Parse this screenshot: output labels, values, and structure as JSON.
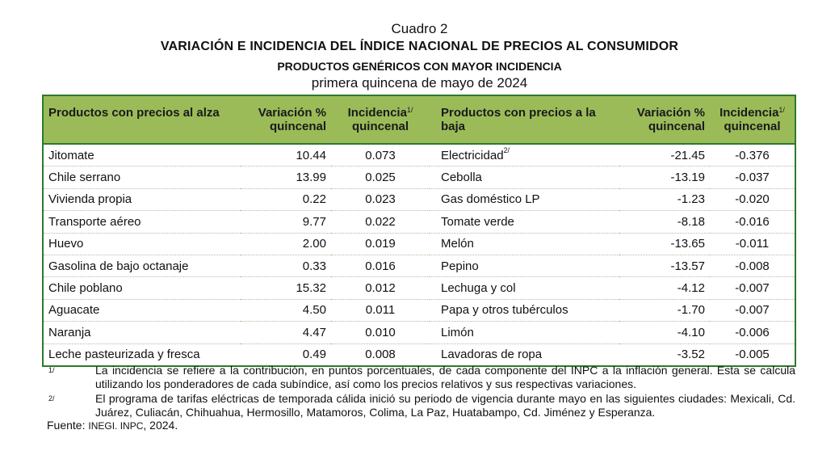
{
  "title": {
    "cuadro": "Cuadro 2",
    "main": "VARIACIÓN E INCIDENCIA DEL ÍNDICE NACIONAL DE PRECIOS AL CONSUMIDOR",
    "sub": "PRODUCTOS GENÉRICOS CON MAYOR INCIDENCIA",
    "period": "primera quincena de mayo de 2024"
  },
  "headers": {
    "up_product": "Productos con precios al alza",
    "variacion": "Variación % quincenal",
    "incidencia": "Incidencia",
    "incidencia_note": "1/",
    "quincenal": "quincenal",
    "down_product": "Productos con precios a la baja"
  },
  "rows": [
    {
      "up": "Jitomate",
      "uv": "10.44",
      "ui": "0.073",
      "down": "Electricidad",
      "dnote": "2/",
      "dv": "-21.45",
      "di": "-0.376"
    },
    {
      "up": "Chile serrano",
      "uv": "13.99",
      "ui": "0.025",
      "down": "Cebolla",
      "dv": "-13.19",
      "di": "-0.037"
    },
    {
      "up": "Vivienda propia",
      "uv": "0.22",
      "ui": "0.023",
      "down": "Gas doméstico LP",
      "dv": "-1.23",
      "di": "-0.020"
    },
    {
      "up": "Transporte aéreo",
      "uv": "9.77",
      "ui": "0.022",
      "down": "Tomate verde",
      "dv": "-8.18",
      "di": "-0.016"
    },
    {
      "up": "Huevo",
      "uv": "2.00",
      "ui": "0.019",
      "down": "Melón",
      "dv": "-13.65",
      "di": "-0.011"
    },
    {
      "up": "Gasolina de bajo octanaje",
      "uv": "0.33",
      "ui": "0.016",
      "down": "Pepino",
      "dv": "-13.57",
      "di": "-0.008"
    },
    {
      "up": "Chile poblano",
      "uv": "15.32",
      "ui": "0.012",
      "down": "Lechuga y col",
      "dv": "-4.12",
      "di": "-0.007"
    },
    {
      "up": "Aguacate",
      "uv": "4.50",
      "ui": "0.011",
      "down": "Papa y otros tubérculos",
      "dv": "-1.70",
      "di": "-0.007"
    },
    {
      "up": "Naranja",
      "uv": "4.47",
      "ui": "0.010",
      "down": "Limón",
      "dv": "-4.10",
      "di": "-0.006"
    },
    {
      "up": "Leche pasteurizada y fresca",
      "uv": "0.49",
      "ui": "0.008",
      "down": "Lavadoras de ropa",
      "dv": "-3.52",
      "di": "-0.005"
    }
  ],
  "notes": [
    {
      "mark": "1/",
      "text": "La incidencia se refiere a la contribución, en puntos porcentuales, de cada componente del INPC a la inflación general. Esta se calcula utilizando los ponderadores de cada subíndice, así como los precios relativos y sus respectivas variaciones."
    },
    {
      "mark": "2/",
      "text": "El programa de tarifas eléctricas de temporada cálida inició su periodo de vigencia durante mayo en las siguientes ciudades: Mexicali, Cd. Juárez, Culiacán, Chihuahua, Hermosillo, Matamoros, Colima, La Paz, Huatabampo, Cd. Jiménez y Esperanza."
    }
  ],
  "source": {
    "label": "Fuente:",
    "org": "INEGI. INPC",
    "year": ", 2024."
  },
  "colors": {
    "header_bg": "#9bbb59",
    "border": "#2d7a2d"
  }
}
